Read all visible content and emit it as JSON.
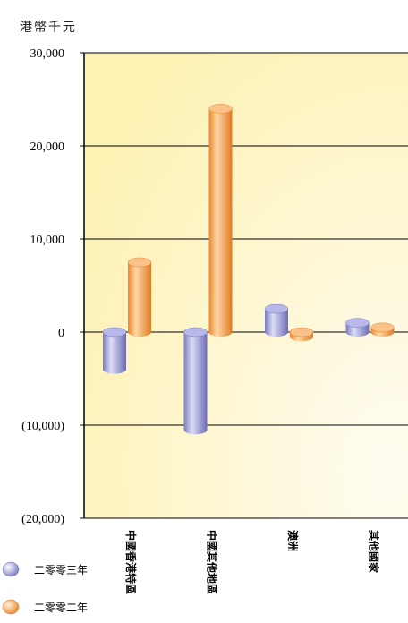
{
  "chart_data": {
    "type": "bar",
    "unit_label": "港幣千元",
    "categories": [
      "中國香港特區",
      "中國其他地區",
      "澳洲",
      "其他國家"
    ],
    "series": [
      {
        "name": "二零零三年",
        "values": [
          -4000,
          -10500,
          2500,
          1000
        ],
        "color": "#9a9ad6"
      },
      {
        "name": "二零零二年",
        "values": [
          7500,
          24000,
          -500,
          500
        ],
        "color": "#f5a55a"
      }
    ],
    "ylim": [
      -20000,
      30000
    ],
    "yticks": [
      30000,
      20000,
      10000,
      0,
      -10000,
      -20000
    ],
    "ytick_labels": [
      "30,000",
      "20,000",
      "10,000",
      "0",
      "(10,000)",
      "(20,000)"
    ],
    "grid": true,
    "legend_position": "bottom-left",
    "plot_background": [
      "#fdf2b8",
      "#fffbe8"
    ]
  }
}
